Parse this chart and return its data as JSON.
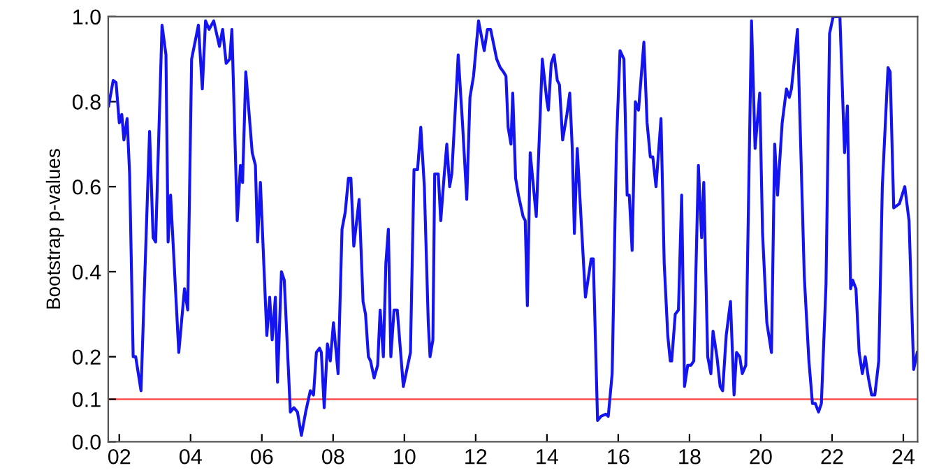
{
  "chart_data": {
    "type": "line",
    "ylabel": "Bootstrap p-values",
    "xlim": [
      2001.69,
      2024.4
    ],
    "xticks": [
      {
        "value": 2002,
        "label": "02"
      },
      {
        "value": 2004,
        "label": "04"
      },
      {
        "value": 2006,
        "label": "06"
      },
      {
        "value": 2008,
        "label": "08"
      },
      {
        "value": 2010,
        "label": "10"
      },
      {
        "value": 2012,
        "label": "12"
      },
      {
        "value": 2014,
        "label": "14"
      },
      {
        "value": 2016,
        "label": "16"
      },
      {
        "value": 2018,
        "label": "18"
      },
      {
        "value": 2020,
        "label": "20"
      },
      {
        "value": 2022,
        "label": "22"
      },
      {
        "value": 2024,
        "label": "24"
      }
    ],
    "ylim": [
      0,
      1
    ],
    "yticks": [
      {
        "value": 0,
        "label": "0.0"
      },
      0.1,
      0.2,
      0.4,
      0.6,
      0.8,
      {
        "value": 1,
        "label": "1.0"
      }
    ],
    "grid": false,
    "legend": false,
    "marker": "none",
    "line_style": "solid",
    "ref_lines": [
      {
        "axis": "y",
        "value": 0.1,
        "color": "#ff5a5a",
        "line_style": "solid"
      }
    ],
    "series": [
      {
        "color": "#1414f0",
        "x": [
          2001.7,
          2001.83,
          2001.91,
          2002.0,
          2002.07,
          2002.13,
          2002.22,
          2002.29,
          2002.39,
          2002.46,
          2002.61,
          2002.85,
          2002.95,
          2003.02,
          2003.2,
          2003.31,
          2003.37,
          2003.44,
          2003.67,
          2003.83,
          2003.92,
          2004.03,
          2004.22,
          2004.33,
          2004.42,
          2004.52,
          2004.65,
          2004.81,
          2004.9,
          2005.0,
          2005.1,
          2005.16,
          2005.31,
          2005.4,
          2005.46,
          2005.55,
          2005.73,
          2005.82,
          2005.88,
          2005.96,
          2006.14,
          2006.22,
          2006.29,
          2006.38,
          2006.44,
          2006.55,
          2006.63,
          2006.8,
          2006.9,
          2007.0,
          2007.11,
          2007.23,
          2007.36,
          2007.45,
          2007.53,
          2007.62,
          2007.67,
          2007.75,
          2007.84,
          2007.92,
          2008.01,
          2008.14,
          2008.25,
          2008.34,
          2008.43,
          2008.5,
          2008.58,
          2008.73,
          2008.84,
          2008.91,
          2008.99,
          2009.05,
          2009.15,
          2009.25,
          2009.32,
          2009.41,
          2009.48,
          2009.55,
          2009.62,
          2009.71,
          2009.8,
          2009.97,
          2010.17,
          2010.27,
          2010.37,
          2010.46,
          2010.56,
          2010.67,
          2010.72,
          2010.8,
          2010.85,
          2010.95,
          2011.02,
          2011.11,
          2011.19,
          2011.27,
          2011.33,
          2011.51,
          2011.63,
          2011.75,
          2011.84,
          2011.94,
          2012.08,
          2012.24,
          2012.33,
          2012.42,
          2012.59,
          2012.69,
          2012.78,
          2012.85,
          2012.91,
          2012.99,
          2013.04,
          2013.12,
          2013.2,
          2013.33,
          2013.39,
          2013.45,
          2013.53,
          2013.7,
          2013.87,
          2014.0,
          2014.04,
          2014.12,
          2014.2,
          2014.29,
          2014.35,
          2014.44,
          2014.56,
          2014.64,
          2014.71,
          2014.77,
          2014.85,
          2014.96,
          2015.08,
          2015.24,
          2015.3,
          2015.42,
          2015.52,
          2015.65,
          2015.72,
          2015.83,
          2015.95,
          2016.05,
          2016.16,
          2016.25,
          2016.31,
          2016.39,
          2016.48,
          2016.57,
          2016.72,
          2016.81,
          2016.9,
          2016.97,
          2017.06,
          2017.2,
          2017.29,
          2017.39,
          2017.46,
          2017.5,
          2017.6,
          2017.69,
          2017.78,
          2017.86,
          2017.95,
          2018.04,
          2018.12,
          2018.25,
          2018.34,
          2018.4,
          2018.51,
          2018.6,
          2018.66,
          2018.77,
          2018.86,
          2018.93,
          2019.03,
          2019.15,
          2019.25,
          2019.32,
          2019.41,
          2019.48,
          2019.58,
          2019.74,
          2019.84,
          2019.97,
          2020.05,
          2020.17,
          2020.3,
          2020.39,
          2020.47,
          2020.6,
          2020.72,
          2020.8,
          2020.86,
          2021.03,
          2021.22,
          2021.35,
          2021.45,
          2021.53,
          2021.62,
          2021.7,
          2021.83,
          2021.93,
          2022.03,
          2022.22,
          2022.35,
          2022.43,
          2022.52,
          2022.58,
          2022.67,
          2022.76,
          2022.85,
          2022.93,
          2023.02,
          2023.11,
          2023.2,
          2023.31,
          2023.41,
          2023.57,
          2023.63,
          2023.73,
          2023.89,
          2024.04,
          2024.16,
          2024.29,
          2024.39
        ],
        "values": [
          0.79,
          0.85,
          0.845,
          0.75,
          0.77,
          0.71,
          0.76,
          0.63,
          0.2,
          0.2,
          0.12,
          0.73,
          0.48,
          0.47,
          0.98,
          0.91,
          0.47,
          0.58,
          0.21,
          0.36,
          0.31,
          0.9,
          0.98,
          0.83,
          0.99,
          0.97,
          0.99,
          0.93,
          0.97,
          0.89,
          0.9,
          0.97,
          0.52,
          0.65,
          0.61,
          0.87,
          0.68,
          0.65,
          0.47,
          0.61,
          0.25,
          0.34,
          0.24,
          0.34,
          0.14,
          0.4,
          0.38,
          0.07,
          0.08,
          0.07,
          0.015,
          0.07,
          0.12,
          0.11,
          0.21,
          0.22,
          0.21,
          0.08,
          0.23,
          0.19,
          0.28,
          0.16,
          0.5,
          0.54,
          0.62,
          0.62,
          0.46,
          0.57,
          0.33,
          0.3,
          0.2,
          0.19,
          0.15,
          0.18,
          0.31,
          0.2,
          0.42,
          0.5,
          0.2,
          0.31,
          0.31,
          0.13,
          0.21,
          0.64,
          0.64,
          0.74,
          0.6,
          0.28,
          0.2,
          0.24,
          0.63,
          0.63,
          0.52,
          0.62,
          0.7,
          0.6,
          0.63,
          0.91,
          0.75,
          0.57,
          0.81,
          0.86,
          0.99,
          0.92,
          0.97,
          0.97,
          0.9,
          0.88,
          0.87,
          0.86,
          0.74,
          0.7,
          0.82,
          0.62,
          0.58,
          0.53,
          0.52,
          0.32,
          0.68,
          0.53,
          0.9,
          0.8,
          0.78,
          0.89,
          0.91,
          0.85,
          0.84,
          0.71,
          0.77,
          0.82,
          0.69,
          0.49,
          0.69,
          0.52,
          0.34,
          0.43,
          0.43,
          0.05,
          0.06,
          0.065,
          0.06,
          0.16,
          0.7,
          0.92,
          0.9,
          0.58,
          0.58,
          0.45,
          0.8,
          0.78,
          0.94,
          0.75,
          0.67,
          0.67,
          0.6,
          0.76,
          0.42,
          0.25,
          0.19,
          0.19,
          0.3,
          0.31,
          0.58,
          0.13,
          0.18,
          0.18,
          0.19,
          0.65,
          0.48,
          0.61,
          0.2,
          0.16,
          0.26,
          0.2,
          0.13,
          0.12,
          0.25,
          0.33,
          0.11,
          0.21,
          0.2,
          0.16,
          0.18,
          0.99,
          0.69,
          0.82,
          0.49,
          0.28,
          0.21,
          0.7,
          0.58,
          0.75,
          0.83,
          0.81,
          0.83,
          0.97,
          0.39,
          0.19,
          0.09,
          0.09,
          0.07,
          0.09,
          0.37,
          0.96,
          1.0,
          1.0,
          0.68,
          0.79,
          0.36,
          0.38,
          0.36,
          0.21,
          0.16,
          0.2,
          0.15,
          0.11,
          0.11,
          0.19,
          0.6,
          0.88,
          0.87,
          0.55,
          0.56,
          0.6,
          0.52,
          0.17,
          0.21
        ]
      }
    ]
  }
}
